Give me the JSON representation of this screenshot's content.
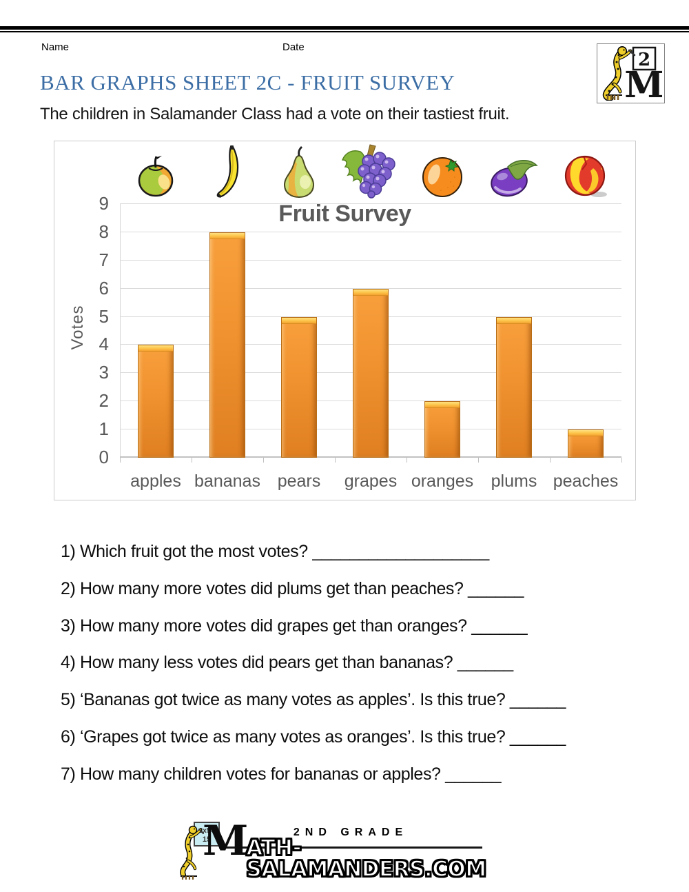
{
  "header": {
    "name_label": "Name",
    "date_label": "Date",
    "title": "BAR GRAPHS SHEET 2C - FRUIT SURVEY",
    "subtitle": "The children in Salamander Class had a vote on their tastiest fruit.",
    "logo": {
      "grade_number": "2",
      "letter": "M"
    }
  },
  "chart_data": {
    "type": "bar",
    "title": "Fruit Survey",
    "ylabel": "Votes",
    "xlabel": "",
    "categories": [
      "apples",
      "bananas",
      "pears",
      "grapes",
      "oranges",
      "plums",
      "peaches"
    ],
    "values": [
      4,
      8,
      5,
      6,
      2,
      5,
      1
    ],
    "ylim": [
      0,
      9
    ],
    "yticks": [
      0,
      1,
      2,
      3,
      4,
      5,
      6,
      7,
      8,
      9
    ],
    "grid": true,
    "legend": false,
    "bar_color": "#F0922F",
    "bar_highlight": "#FFD54F",
    "axis_text_color": "#595959",
    "fruit_icons": [
      "apple-icon",
      "banana-icon",
      "pear-icon",
      "grapes-icon",
      "orange-icon",
      "plum-icon",
      "peach-icon"
    ]
  },
  "questions": [
    "1) Which fruit got the most votes? ___________________",
    "2) How many more votes did plums get than peaches? ______",
    "3) How many more votes did grapes get than oranges? ______",
    "4) How many less votes did pears get than bananas? ______",
    "5) ‘Bananas got twice as many votes as apples’. Is this true? ______",
    "6) ‘Grapes got twice as many votes as oranges’. Is this true? ______",
    "7) How many children votes for bananas or apples? ______"
  ],
  "footer": {
    "grade_text": "2ND GRADE",
    "site_initial": "M",
    "site_rest": "ATH-SALAMANDERS.COM",
    "board_text_line1": "3x5=",
    "board_text_line2": "15"
  }
}
